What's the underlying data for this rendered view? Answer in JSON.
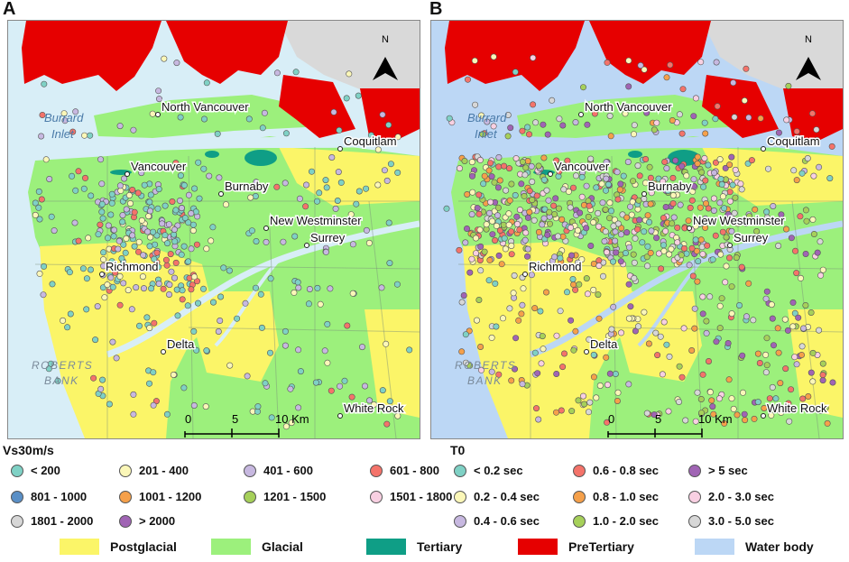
{
  "panels": [
    {
      "label": "A",
      "places": {
        "north_vancouver": "North Vancouver",
        "burrard_inlet": "Burrard Inlet",
        "coquitlam": "Coquitlam",
        "vancouver": "Vancouver",
        "burnaby": "Burnaby",
        "new_westminster": "New Westminster",
        "surrey": "Surrey",
        "richmond": "Richmond",
        "delta": "Delta",
        "roberts_bank": "ROBERTS BANK",
        "white_rock": "White Rock"
      },
      "scalebar": {
        "ticks": [
          "0",
          "5",
          "10 Km"
        ]
      },
      "north": "N"
    },
    {
      "label": "B",
      "places": {
        "north_vancouver": "North Vancouver",
        "burrard_inlet": "Burrard Inlet",
        "coquitlam": "Coquitlam",
        "vancouver": "Vancouver",
        "burnaby": "Burnaby",
        "new_westminster": "New Westminster",
        "surrey": "Surrey",
        "richmond": "Richmond",
        "delta": "Delta",
        "roberts_bank": "ROBERTS BANK",
        "white_rock": "White Rock"
      },
      "scalebar": {
        "ticks": [
          "0",
          "5",
          "10 Km"
        ]
      },
      "north": "N"
    }
  ],
  "legend_vs30": {
    "title": "Vs30m/s",
    "items": [
      {
        "label": "< 200",
        "color": "#7fd1c5"
      },
      {
        "label": "201 - 400",
        "color": "#fbf7b8"
      },
      {
        "label": "401 - 600",
        "color": "#c7b8e0"
      },
      {
        "label": "601 - 800",
        "color": "#f4736a"
      },
      {
        "label": "801 - 1000",
        "color": "#5a8fc6"
      },
      {
        "label": "1001 - 1200",
        "color": "#f5a04a"
      },
      {
        "label": "1201 - 1500",
        "color": "#a6d05a"
      },
      {
        "label": "1501 - 1800",
        "color": "#f8d0e2"
      },
      {
        "label": "1801 - 2000",
        "color": "#d7d7d7"
      },
      {
        "label": "> 2000",
        "color": "#a064b4"
      }
    ]
  },
  "legend_t0": {
    "title": "T0",
    "items": [
      {
        "label": "< 0.2 sec",
        "color": "#7fd1c5"
      },
      {
        "label": "0.6 - 0.8 sec",
        "color": "#f4736a"
      },
      {
        "label": "> 5 sec",
        "color": "#a064b4"
      },
      {
        "label": "0.2 - 0.4 sec",
        "color": "#fbf7b8"
      },
      {
        "label": "0.8 - 1.0 sec",
        "color": "#f5a04a"
      },
      {
        "label": "2.0 - 3.0 sec",
        "color": "#f8d0e2"
      },
      {
        "label": "0.4 - 0.6 sec",
        "color": "#c7b8e0"
      },
      {
        "label": "1.0 - 2.0 sec",
        "color": "#a6d05a"
      },
      {
        "label": "3.0 - 5.0 sec",
        "color": "#d7d7d7"
      }
    ]
  },
  "geology_legend": [
    {
      "label": "Postglacial",
      "color": "#fbf568"
    },
    {
      "label": "Glacial",
      "color": "#9cf07c"
    },
    {
      "label": "Tertiary",
      "color": "#0f9e86"
    },
    {
      "label": "PreTertiary",
      "color": "#e60000"
    },
    {
      "label": "Water body",
      "color": "#bcd7f5"
    }
  ]
}
